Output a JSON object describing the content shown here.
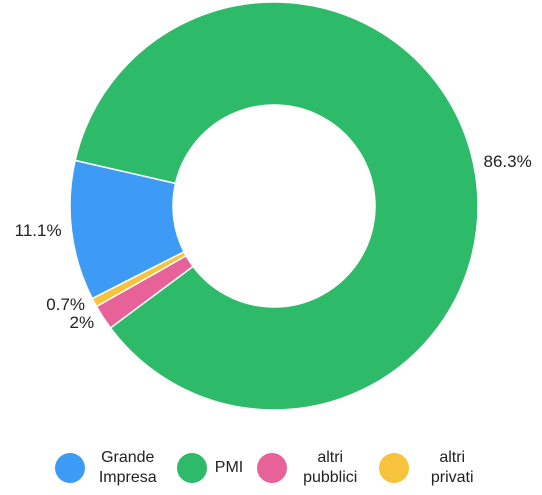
{
  "chart_data": {
    "type": "donut",
    "categories": [
      "Grande Impresa",
      "PMI",
      "altri pubblici",
      "altri privati"
    ],
    "values": [
      11.1,
      86.3,
      2,
      0.7
    ],
    "value_labels": [
      "11.1%",
      "86.3%",
      "2%",
      "0.7%"
    ],
    "colors": [
      "#3d9bf5",
      "#2dbb6a",
      "#e8629a",
      "#f8c33c"
    ],
    "legend": "bottom"
  }
}
